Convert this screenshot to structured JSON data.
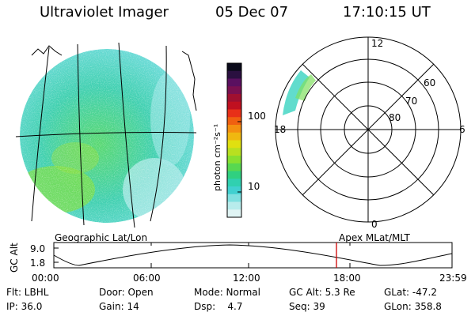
{
  "header": {
    "instrument": "Ultraviolet Imager",
    "date": "05 Dec 07",
    "time": "17:10:15 UT"
  },
  "colorbar": {
    "unit_label": "photon cm⁻²s⁻¹",
    "ticks": [
      "100",
      "10"
    ],
    "colors": [
      "#0a0a1a",
      "#2a1040",
      "#5a1060",
      "#7a1050",
      "#a01030",
      "#c01020",
      "#e83018",
      "#f06010",
      "#f49010",
      "#f0b810",
      "#e0e010",
      "#b8e020",
      "#88e030",
      "#58d850",
      "#30d080",
      "#30d0b0",
      "#40d0d0",
      "#80e0e0",
      "#b8ecec",
      "#e0f4f4"
    ]
  },
  "geo_panel": {
    "label": "Geographic Lat/Lon"
  },
  "polar_panel": {
    "label": "Apex MLat/MLT",
    "mlt_labels": {
      "top": "12",
      "right": "6",
      "bottom": "0",
      "left": "18"
    },
    "lat_labels": [
      "60",
      "70",
      "80"
    ]
  },
  "altitude_plot": {
    "ylabel": "GC Alt",
    "yticks": [
      "9.0",
      "1.8"
    ],
    "xticks": [
      "00:00",
      "06:00",
      "12:00",
      "18:00",
      "23:59"
    ],
    "marker_color": "#d00000"
  },
  "info": {
    "col1": [
      "Flt: LBHL",
      "IP: 36.0"
    ],
    "col2": [
      "Door: Open",
      "Gain: 14"
    ],
    "col3": [
      "Mode: Normal",
      "Dsp:    4.7"
    ],
    "col4": [
      "GC Alt: 5.3 Re",
      "Seq: 39"
    ],
    "col5": [
      "GLat: -47.2",
      "GLon: 358.8"
    ]
  }
}
